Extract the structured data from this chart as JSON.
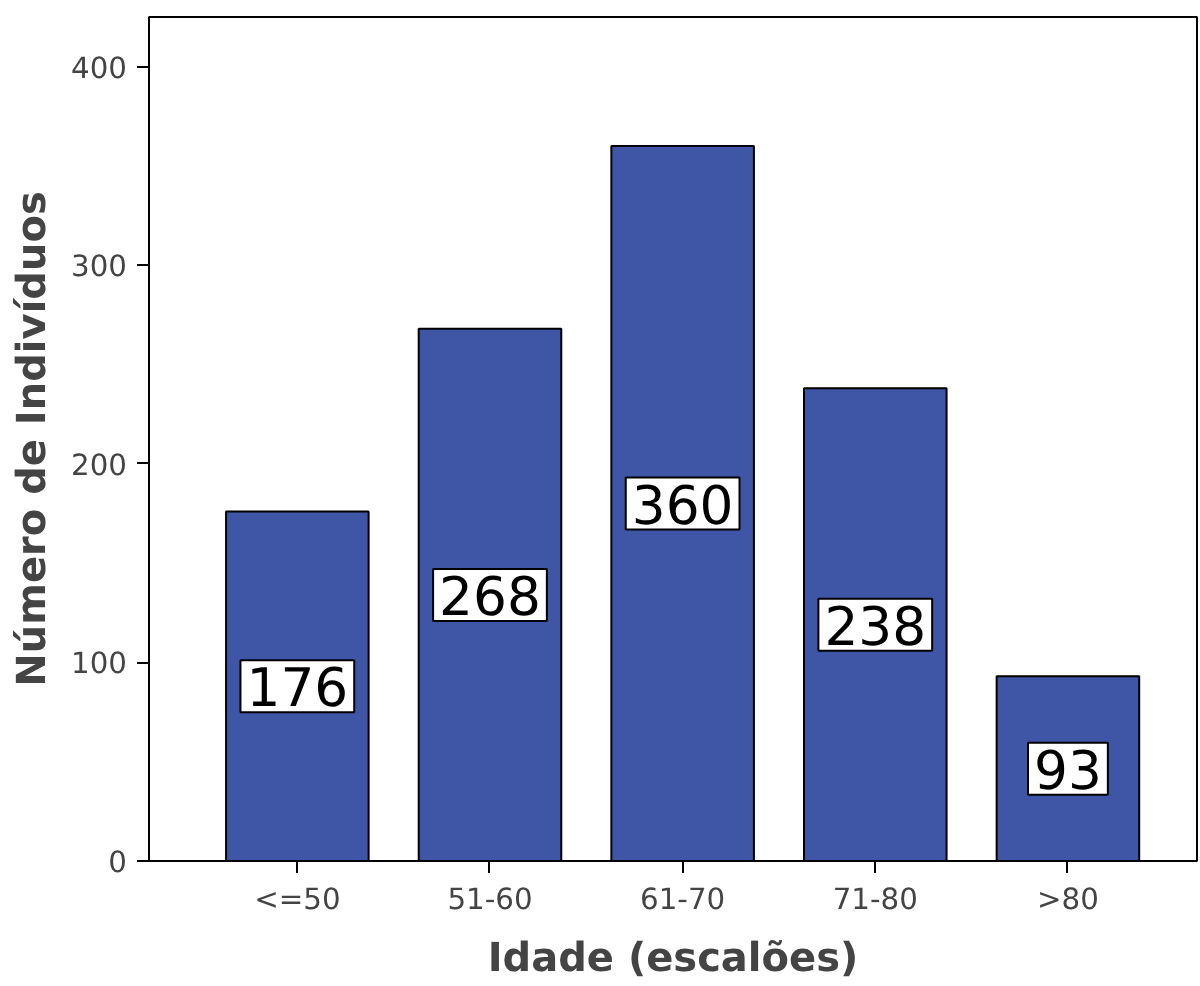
{
  "chart_data": {
    "type": "bar",
    "xlabel": "Idade (escalões)",
    "ylabel": "Número de Indivíduos",
    "categories": [
      "<=50",
      "51-60",
      "61-70",
      "71-80",
      ">80"
    ],
    "values": [
      176,
      268,
      360,
      238,
      93
    ],
    "color": "#3f55a6",
    "ylim": [
      0,
      425
    ],
    "yticks": [
      0,
      100,
      200,
      300,
      400
    ],
    "grid": false,
    "data_labels": true
  }
}
